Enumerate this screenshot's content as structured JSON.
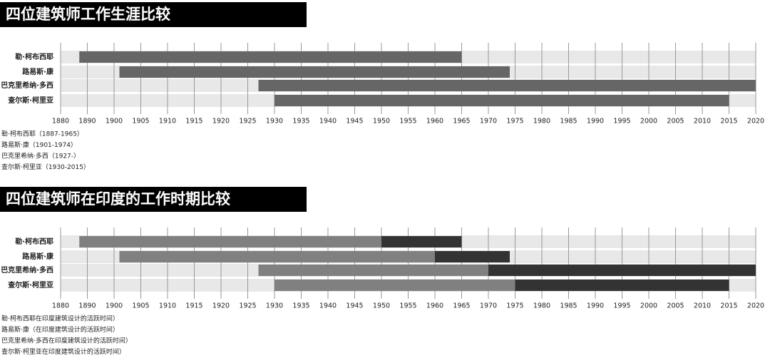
{
  "chart_data": [
    {
      "type": "range-bar",
      "title": "四位建筑师工作生涯比较",
      "categories": [
        "勒·柯布西耶",
        "路易斯·康",
        "巴克里希纳·多西",
        "查尔斯·柯里亚"
      ],
      "series": [
        {
          "color": "#666666",
          "start": [
            1887,
            1901,
            1927,
            1930
          ],
          "end": [
            1965,
            1974,
            2020,
            2015
          ]
        }
      ],
      "xlim": [
        1880,
        2020
      ],
      "xticks": [
        1880,
        1890,
        1900,
        1905,
        1910,
        1915,
        1920,
        1925,
        1930,
        1935,
        1940,
        1945,
        1950,
        1955,
        1960,
        1965,
        1970,
        1975,
        1980,
        1985,
        1990,
        1995,
        2000,
        2005,
        2010,
        2015,
        2020
      ],
      "grid": true,
      "notes": [
        "勒·柯布西耶（1887-1965）",
        "路易斯·康（1901-1974）",
        "巴克里希纳·多西（1927-）",
        "查尔斯·柯里亚（1930-2015）"
      ]
    },
    {
      "type": "range-bar",
      "title": "四位建筑师在印度的工作时期比较",
      "categories": [
        "勒·柯布西耶",
        "路易斯·康",
        "巴克里希纳·多西",
        "查尔斯·柯里亚"
      ],
      "series": [
        {
          "color": "#808080",
          "start": [
            1887,
            1901,
            1927,
            1930
          ],
          "end": [
            1950,
            1960,
            1970,
            1975
          ]
        },
        {
          "color": "#333333",
          "start": [
            1950,
            1960,
            1970,
            1975
          ],
          "end": [
            1965,
            1974,
            2020,
            2015
          ]
        }
      ],
      "xlim": [
        1880,
        2020
      ],
      "xticks": [
        1880,
        1890,
        1900,
        1905,
        1910,
        1915,
        1920,
        1925,
        1930,
        1935,
        1940,
        1945,
        1950,
        1955,
        1960,
        1965,
        1970,
        1975,
        1980,
        1985,
        1990,
        1995,
        2000,
        2005,
        2010,
        2015,
        2020
      ],
      "grid": true,
      "notes": [
        "勒·柯布西耶在印度建筑设计的活跃时间）",
        "路易斯·康（在印度建筑设计的活跃时间）",
        "巴克里希纳·多西在印度建筑设计的活跃时间）",
        "查尔斯·柯里亚在印度建筑设计的活跃时间）"
      ]
    }
  ]
}
